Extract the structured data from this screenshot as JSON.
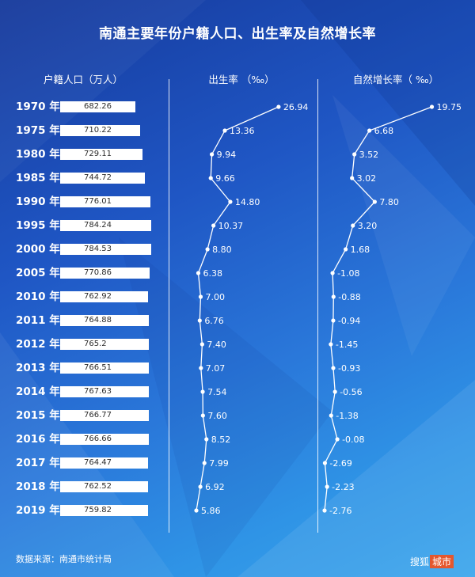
{
  "title": "南通主要年份户籍人口、出生率及自然增长率",
  "source": "数据来源：南通市统计局",
  "logo": {
    "text": "搜狐",
    "box": "城市"
  },
  "colors": {
    "bar": "#ffffff",
    "line": "#ffffff",
    "bar_text": "#2b2b2b"
  },
  "chart_data": {
    "type": "bar",
    "categories": [
      "1970 年",
      "1975 年",
      "1980 年",
      "1985 年",
      "1990 年",
      "1995 年",
      "2000 年",
      "2005 年",
      "2010 年",
      "2011 年",
      "2012 年",
      "2013 年",
      "2014 年",
      "2015 年",
      "2016 年",
      "2017 年",
      "2018 年",
      "2019 年"
    ],
    "population": {
      "header": "户籍人口（万人）",
      "values": [
        682.26,
        710.22,
        729.11,
        744.72,
        776.01,
        784.24,
        784.53,
        770.86,
        762.92,
        764.88,
        765.2,
        766.51,
        767.63,
        766.77,
        766.66,
        764.47,
        762.52,
        759.82
      ],
      "labels": [
        "682.26",
        "710.22",
        "729.11",
        "744.72",
        "776.01",
        "784.24",
        "784.53",
        "770.86",
        "762.92",
        "764.88",
        "765.2",
        "766.51",
        "767.63",
        "766.77",
        "766.66",
        "764.47",
        "762.52",
        "759.82"
      ]
    },
    "birth_rate": {
      "header": "出生率 （‰）",
      "values": [
        26.94,
        13.36,
        9.94,
        9.66,
        14.8,
        10.37,
        8.8,
        6.38,
        7.0,
        6.76,
        7.4,
        7.07,
        7.54,
        7.6,
        8.52,
        7.99,
        6.92,
        5.86
      ],
      "labels": [
        "26.94",
        "13.36",
        "9.94",
        "9.66",
        "14.80",
        "10.37",
        "8.80",
        "6.38",
        "7.00",
        "6.76",
        "7.40",
        "7.07",
        "7.54",
        "7.60",
        "8.52",
        "7.99",
        "6.92",
        "5.86"
      ]
    },
    "natural_growth": {
      "header": "自然增长率（ ‰）",
      "values": [
        19.75,
        6.68,
        3.52,
        3.02,
        7.8,
        3.2,
        1.68,
        -1.08,
        -0.88,
        -0.94,
        -1.45,
        -0.93,
        -0.56,
        -1.38,
        -0.08,
        -2.69,
        -2.23,
        -2.76
      ],
      "labels": [
        "19.75",
        "6.68",
        "3.52",
        "3.02",
        "7.80",
        "3.20",
        "1.68",
        "-1.08",
        "-0.88",
        "-0.94",
        "-1.45",
        "-0.93",
        "-0.56",
        "-1.38",
        "-0.08",
        "-2.69",
        "-2.23",
        "-2.76"
      ]
    }
  }
}
